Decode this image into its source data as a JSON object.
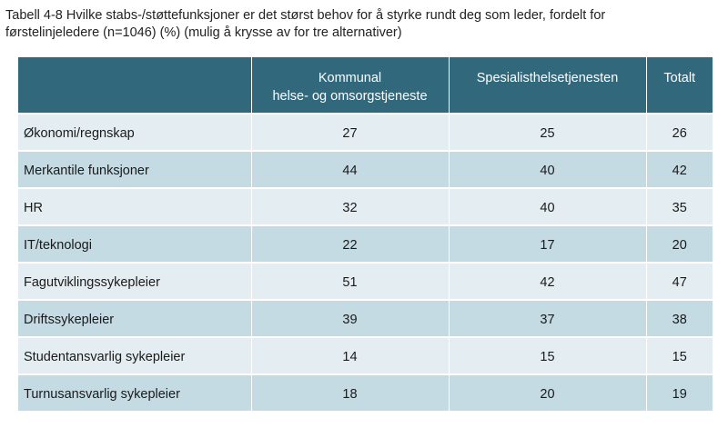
{
  "caption": {
    "line1": "Tabell 4-8 Hvilke stabs-/støttefunksjoner er det størst behov for å styrke rundt deg som leder, fordelt for",
    "line2": "førstelinjeledere (n=1046) (%) (mulig å krysse av for tre alternativer)"
  },
  "table": {
    "headers": {
      "col1": "",
      "col2_line1": "Kommunal",
      "col2_line2": "helse- og omsorgstjeneste",
      "col3": "Spesialisthelsetjenesten",
      "col4": "Totalt"
    },
    "rows": [
      {
        "label": "Økonomi/regnskap",
        "kommunal": "27",
        "spesialist": "25",
        "totalt": "26"
      },
      {
        "label": "Merkantile funksjoner",
        "kommunal": "44",
        "spesialist": "40",
        "totalt": "42"
      },
      {
        "label": "HR",
        "kommunal": "32",
        "spesialist": "40",
        "totalt": "35"
      },
      {
        "label": "IT/teknologi",
        "kommunal": "22",
        "spesialist": "17",
        "totalt": "20"
      },
      {
        "label": "Fagutviklingssykepleier",
        "kommunal": "51",
        "spesialist": "42",
        "totalt": "47"
      },
      {
        "label": "Driftssykepleier",
        "kommunal": "39",
        "spesialist": "37",
        "totalt": "38"
      },
      {
        "label": "Studentansvarlig sykepleier",
        "kommunal": "14",
        "spesialist": "15",
        "totalt": "15"
      },
      {
        "label": "Turnusansvarlig sykepleier",
        "kommunal": "18",
        "spesialist": "20",
        "totalt": "19"
      }
    ]
  },
  "colors": {
    "header_bg": "#31687c",
    "row_light": "#e4eef2",
    "row_dark": "#c5dbe4"
  }
}
